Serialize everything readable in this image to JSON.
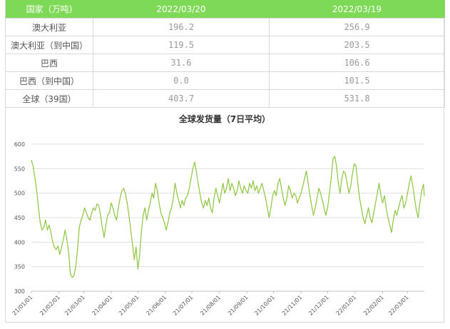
{
  "table": {
    "headers": [
      "国家（万吨)",
      "2022/03/20",
      "2022/03/19"
    ],
    "rows": [
      {
        "label": "澳大利亚",
        "v1": "196.2",
        "v2": "256.9"
      },
      {
        "label": "澳大利亚（到中国）",
        "v1": "119.5",
        "v2": "203.5"
      },
      {
        "label": "巴西",
        "v1": "31.6",
        "v2": "106.6"
      },
      {
        "label": "巴西（到中国）",
        "v1": "0.0",
        "v2": "101.5"
      },
      {
        "label": "全球（39国）",
        "v1": "403.7",
        "v2": "531.8"
      }
    ]
  },
  "colors": {
    "header_bg": "#7ed957",
    "line": "#8cc63f",
    "grid": "#e0e0e0"
  },
  "chart_data": {
    "type": "line",
    "title": "全球发货量（7日平均）",
    "xlabel": "",
    "ylabel": "",
    "ylim": [
      300,
      600
    ],
    "yticks": [
      300,
      350,
      400,
      450,
      500,
      550,
      600
    ],
    "grid": true,
    "x_tick_labels": [
      "21/01/01",
      "21/02/01",
      "21/03/01",
      "21/04/01",
      "21/05/01",
      "21/06/01",
      "21/07/01",
      "21/08/01",
      "21/09/01",
      "21/10/01",
      "21/11/01",
      "21/12/01",
      "22/01/01",
      "22/02/01",
      "22/03/01"
    ],
    "x_start": "2021-01-01",
    "x_end": "2022-03-20",
    "series": [
      {
        "name": "",
        "points": [
          [
            "2021-01-01",
            567
          ],
          [
            "2021-01-03",
            555
          ],
          [
            "2021-01-05",
            530
          ],
          [
            "2021-01-07",
            505
          ],
          [
            "2021-01-09",
            470
          ],
          [
            "2021-01-11",
            440
          ],
          [
            "2021-01-13",
            425
          ],
          [
            "2021-01-15",
            430
          ],
          [
            "2021-01-17",
            445
          ],
          [
            "2021-01-19",
            425
          ],
          [
            "2021-01-21",
            435
          ],
          [
            "2021-01-23",
            420
          ],
          [
            "2021-01-25",
            400
          ],
          [
            "2021-01-27",
            390
          ],
          [
            "2021-01-29",
            385
          ],
          [
            "2021-01-31",
            392
          ],
          [
            "2021-02-02",
            375
          ],
          [
            "2021-02-04",
            390
          ],
          [
            "2021-02-06",
            405
          ],
          [
            "2021-02-08",
            425
          ],
          [
            "2021-02-10",
            405
          ],
          [
            "2021-02-12",
            380
          ],
          [
            "2021-02-14",
            335
          ],
          [
            "2021-02-16",
            328
          ],
          [
            "2021-02-18",
            332
          ],
          [
            "2021-02-20",
            350
          ],
          [
            "2021-02-22",
            385
          ],
          [
            "2021-02-24",
            430
          ],
          [
            "2021-02-26",
            445
          ],
          [
            "2021-02-28",
            455
          ],
          [
            "2021-03-02",
            470
          ],
          [
            "2021-03-04",
            460
          ],
          [
            "2021-03-06",
            450
          ],
          [
            "2021-03-08",
            445
          ],
          [
            "2021-03-10",
            460
          ],
          [
            "2021-03-12",
            470
          ],
          [
            "2021-03-14",
            465
          ],
          [
            "2021-03-16",
            478
          ],
          [
            "2021-03-18",
            475
          ],
          [
            "2021-03-20",
            455
          ],
          [
            "2021-03-22",
            430
          ],
          [
            "2021-03-24",
            410
          ],
          [
            "2021-03-26",
            435
          ],
          [
            "2021-03-28",
            455
          ],
          [
            "2021-03-30",
            460
          ],
          [
            "2021-04-01",
            480
          ],
          [
            "2021-04-03",
            470
          ],
          [
            "2021-04-05",
            455
          ],
          [
            "2021-04-07",
            445
          ],
          [
            "2021-04-09",
            470
          ],
          [
            "2021-04-11",
            490
          ],
          [
            "2021-04-13",
            505
          ],
          [
            "2021-04-15",
            510
          ],
          [
            "2021-04-17",
            500
          ],
          [
            "2021-04-19",
            480
          ],
          [
            "2021-04-21",
            455
          ],
          [
            "2021-04-23",
            425
          ],
          [
            "2021-04-25",
            395
          ],
          [
            "2021-04-27",
            365
          ],
          [
            "2021-04-29",
            390
          ],
          [
            "2021-05-01",
            345
          ],
          [
            "2021-05-03",
            372
          ],
          [
            "2021-05-05",
            420
          ],
          [
            "2021-05-07",
            455
          ],
          [
            "2021-05-09",
            470
          ],
          [
            "2021-05-11",
            445
          ],
          [
            "2021-05-13",
            465
          ],
          [
            "2021-05-15",
            480
          ],
          [
            "2021-05-17",
            500
          ],
          [
            "2021-05-19",
            490
          ],
          [
            "2021-05-21",
            520
          ],
          [
            "2021-05-23",
            505
          ],
          [
            "2021-05-25",
            480
          ],
          [
            "2021-05-27",
            460
          ],
          [
            "2021-05-29",
            450
          ],
          [
            "2021-05-31",
            440
          ],
          [
            "2021-06-02",
            425
          ],
          [
            "2021-06-04",
            440
          ],
          [
            "2021-06-06",
            460
          ],
          [
            "2021-06-08",
            470
          ],
          [
            "2021-06-10",
            490
          ],
          [
            "2021-06-12",
            520
          ],
          [
            "2021-06-14",
            500
          ],
          [
            "2021-06-16",
            485
          ],
          [
            "2021-06-18",
            470
          ],
          [
            "2021-06-20",
            485
          ],
          [
            "2021-06-22",
            475
          ],
          [
            "2021-06-24",
            490
          ],
          [
            "2021-06-26",
            495
          ],
          [
            "2021-06-28",
            510
          ],
          [
            "2021-06-30",
            530
          ],
          [
            "2021-07-02",
            550
          ],
          [
            "2021-07-04",
            563
          ],
          [
            "2021-07-06",
            545
          ],
          [
            "2021-07-08",
            520
          ],
          [
            "2021-07-10",
            500
          ],
          [
            "2021-07-12",
            480
          ],
          [
            "2021-07-14",
            470
          ],
          [
            "2021-07-16",
            485
          ],
          [
            "2021-07-18",
            475
          ],
          [
            "2021-07-20",
            490
          ],
          [
            "2021-07-22",
            470
          ],
          [
            "2021-07-24",
            460
          ],
          [
            "2021-07-26",
            490
          ],
          [
            "2021-07-28",
            510
          ],
          [
            "2021-07-30",
            495
          ],
          [
            "2021-08-01",
            480
          ],
          [
            "2021-08-03",
            500
          ],
          [
            "2021-08-05",
            520
          ],
          [
            "2021-08-07",
            500
          ],
          [
            "2021-08-09",
            510
          ],
          [
            "2021-08-11",
            530
          ],
          [
            "2021-08-13",
            505
          ],
          [
            "2021-08-15",
            520
          ],
          [
            "2021-08-17",
            510
          ],
          [
            "2021-08-19",
            495
          ],
          [
            "2021-08-21",
            505
          ],
          [
            "2021-08-23",
            525
          ],
          [
            "2021-08-25",
            510
          ],
          [
            "2021-08-27",
            500
          ],
          [
            "2021-08-29",
            515
          ],
          [
            "2021-08-31",
            505
          ],
          [
            "2021-09-02",
            500
          ],
          [
            "2021-09-04",
            520
          ],
          [
            "2021-09-06",
            510
          ],
          [
            "2021-09-08",
            525
          ],
          [
            "2021-09-10",
            505
          ],
          [
            "2021-09-12",
            515
          ],
          [
            "2021-09-14",
            500
          ],
          [
            "2021-09-16",
            510
          ],
          [
            "2021-09-18",
            520
          ],
          [
            "2021-09-20",
            505
          ],
          [
            "2021-09-22",
            490
          ],
          [
            "2021-09-24",
            470
          ],
          [
            "2021-09-26",
            450
          ],
          [
            "2021-09-28",
            470
          ],
          [
            "2021-09-30",
            495
          ],
          [
            "2021-10-02",
            505
          ],
          [
            "2021-10-04",
            495
          ],
          [
            "2021-10-06",
            520
          ],
          [
            "2021-10-08",
            530
          ],
          [
            "2021-10-10",
            510
          ],
          [
            "2021-10-12",
            490
          ],
          [
            "2021-10-14",
            475
          ],
          [
            "2021-10-16",
            490
          ],
          [
            "2021-10-18",
            515
          ],
          [
            "2021-10-20",
            505
          ],
          [
            "2021-10-22",
            490
          ],
          [
            "2021-10-24",
            500
          ],
          [
            "2021-10-26",
            495
          ],
          [
            "2021-10-28",
            480
          ],
          [
            "2021-10-30",
            490
          ],
          [
            "2021-11-01",
            500
          ],
          [
            "2021-11-03",
            515
          ],
          [
            "2021-11-05",
            530
          ],
          [
            "2021-11-07",
            545
          ],
          [
            "2021-11-09",
            520
          ],
          [
            "2021-11-11",
            495
          ],
          [
            "2021-11-13",
            475
          ],
          [
            "2021-11-15",
            455
          ],
          [
            "2021-11-17",
            470
          ],
          [
            "2021-11-19",
            490
          ],
          [
            "2021-11-21",
            510
          ],
          [
            "2021-11-23",
            500
          ],
          [
            "2021-11-25",
            485
          ],
          [
            "2021-11-27",
            470
          ],
          [
            "2021-11-29",
            455
          ],
          [
            "2021-12-01",
            470
          ],
          [
            "2021-12-03",
            500
          ],
          [
            "2021-12-05",
            530
          ],
          [
            "2021-12-07",
            570
          ],
          [
            "2021-12-09",
            575
          ],
          [
            "2021-12-11",
            555
          ],
          [
            "2021-12-13",
            520
          ],
          [
            "2021-12-15",
            500
          ],
          [
            "2021-12-17",
            530
          ],
          [
            "2021-12-19",
            545
          ],
          [
            "2021-12-21",
            540
          ],
          [
            "2021-12-23",
            520
          ],
          [
            "2021-12-25",
            500
          ],
          [
            "2021-12-27",
            515
          ],
          [
            "2021-12-29",
            540
          ],
          [
            "2021-12-31",
            560
          ],
          [
            "2022-01-02",
            555
          ],
          [
            "2022-01-04",
            520
          ],
          [
            "2022-01-06",
            490
          ],
          [
            "2022-01-08",
            470
          ],
          [
            "2022-01-10",
            450
          ],
          [
            "2022-01-12",
            438
          ],
          [
            "2022-01-14",
            455
          ],
          [
            "2022-01-16",
            470
          ],
          [
            "2022-01-18",
            450
          ],
          [
            "2022-01-20",
            440
          ],
          [
            "2022-01-22",
            460
          ],
          [
            "2022-01-24",
            480
          ],
          [
            "2022-01-26",
            500
          ],
          [
            "2022-01-28",
            520
          ],
          [
            "2022-01-30",
            495
          ],
          [
            "2022-02-01",
            480
          ],
          [
            "2022-02-03",
            495
          ],
          [
            "2022-02-05",
            470
          ],
          [
            "2022-02-07",
            450
          ],
          [
            "2022-02-09",
            435
          ],
          [
            "2022-02-11",
            420
          ],
          [
            "2022-02-13",
            445
          ],
          [
            "2022-02-15",
            465
          ],
          [
            "2022-02-17",
            455
          ],
          [
            "2022-02-19",
            470
          ],
          [
            "2022-02-21",
            485
          ],
          [
            "2022-02-23",
            495
          ],
          [
            "2022-02-25",
            470
          ],
          [
            "2022-02-27",
            480
          ],
          [
            "2022-03-01",
            500
          ],
          [
            "2022-03-03",
            520
          ],
          [
            "2022-03-05",
            535
          ],
          [
            "2022-03-07",
            515
          ],
          [
            "2022-03-09",
            490
          ],
          [
            "2022-03-11",
            465
          ],
          [
            "2022-03-13",
            450
          ],
          [
            "2022-03-15",
            480
          ],
          [
            "2022-03-17",
            505
          ],
          [
            "2022-03-19",
            518
          ],
          [
            "2022-03-20",
            495
          ]
        ]
      }
    ]
  }
}
